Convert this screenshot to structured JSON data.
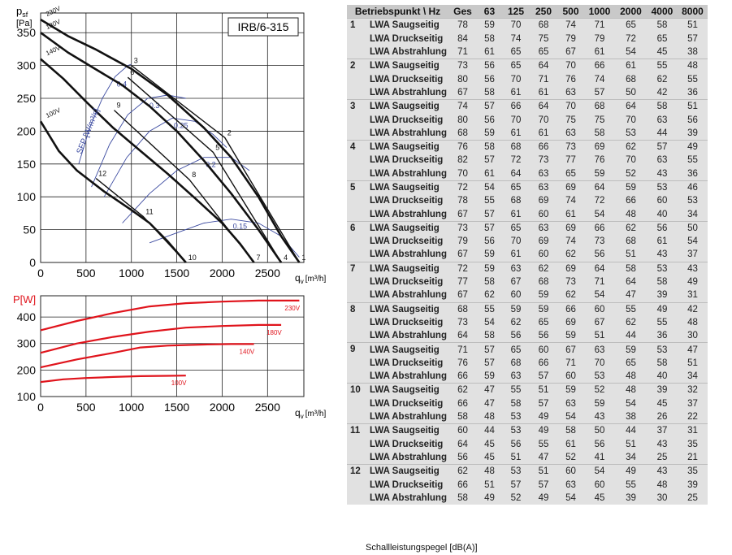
{
  "chart_data": [
    {
      "type": "line",
      "model_label": "IRB/6-315",
      "ylabel_main": "p",
      "ylabel_sub": "sf",
      "ylabel_unit": "[Pa]",
      "xlabel_main": "q",
      "xlabel_sub": "v",
      "xlabel_unit": "[m³/h]",
      "xlim": [
        0,
        2900
      ],
      "ylim": [
        0,
        380
      ],
      "xticks": [
        "0",
        "500",
        "1000",
        "1500",
        "2000",
        "2500"
      ],
      "yticks": [
        "0",
        "50",
        "100",
        "150",
        "200",
        "250",
        "300",
        "350"
      ],
      "grid": true,
      "series": [
        {
          "name": "230V",
          "x": [
            0,
            300,
            600,
            1000,
            1400,
            1800,
            2100,
            2400,
            2650,
            2850
          ],
          "y": [
            370,
            345,
            325,
            295,
            255,
            205,
            160,
            100,
            40,
            0
          ]
        },
        {
          "name": "180V",
          "x": [
            0,
            300,
            600,
            900,
            1200,
            1500,
            1800,
            2100,
            2400,
            2650
          ],
          "y": [
            350,
            320,
            295,
            270,
            238,
            200,
            155,
            105,
            50,
            0
          ]
        },
        {
          "name": "140V",
          "x": [
            0,
            250,
            500,
            800,
            1100,
            1400,
            1700,
            2000,
            2200,
            2350
          ],
          "y": [
            310,
            280,
            245,
            205,
            170,
            135,
            98,
            60,
            28,
            0
          ]
        },
        {
          "name": "100V",
          "x": [
            0,
            200,
            400,
            700,
            1000,
            1200,
            1400,
            1600
          ],
          "y": [
            215,
            170,
            140,
            108,
            80,
            60,
            32,
            0
          ]
        }
      ],
      "operating_points": [
        {
          "label": "1",
          "x": 2850,
          "y": 0
        },
        {
          "label": "2",
          "x": 2030,
          "y": 190
        },
        {
          "label": "3",
          "x": 1000,
          "y": 300
        },
        {
          "label": "4",
          "x": 2650,
          "y": 0
        },
        {
          "label": "5",
          "x": 1900,
          "y": 168
        },
        {
          "label": "6",
          "x": 960,
          "y": 282
        },
        {
          "label": "7",
          "x": 2350,
          "y": 0
        },
        {
          "label": "8",
          "x": 1640,
          "y": 126
        },
        {
          "label": "9",
          "x": 810,
          "y": 232
        },
        {
          "label": "10",
          "x": 1600,
          "y": 0
        },
        {
          "label": "11",
          "x": 1130,
          "y": 70
        },
        {
          "label": "12",
          "x": 610,
          "y": 128
        }
      ],
      "sfp_label": "SFP [W/m³/s]",
      "sfp_curves": [
        {
          "name": "0.4",
          "x": [
            420,
            540,
            680,
            820,
            960,
            1000
          ],
          "y": [
            150,
            205,
            250,
            283,
            300,
            302
          ]
        },
        {
          "name": "0.3",
          "x": [
            560,
            760,
            960,
            1180,
            1400,
            1600
          ],
          "y": [
            115,
            180,
            225,
            250,
            255,
            250
          ]
        },
        {
          "name": "0.25",
          "x": [
            700,
            950,
            1200,
            1450,
            1700,
            1900,
            2050
          ],
          "y": [
            100,
            160,
            200,
            220,
            215,
            195,
            175
          ]
        },
        {
          "name": "0.2",
          "x": [
            900,
            1200,
            1500,
            1800,
            2100,
            2300
          ],
          "y": [
            60,
            105,
            140,
            160,
            160,
            140
          ]
        },
        {
          "name": "0.15",
          "x": [
            1200,
            1500,
            1800,
            2100,
            2400,
            2650,
            2850
          ],
          "y": [
            30,
            45,
            60,
            66,
            60,
            40,
            8
          ]
        }
      ]
    },
    {
      "type": "line",
      "ylabel": "P[W]",
      "xlabel_main": "q",
      "xlabel_sub": "v",
      "xlabel_unit": "[m³/h]",
      "xlim": [
        0,
        2900
      ],
      "ylim": [
        100,
        480
      ],
      "xticks": [
        "0",
        "500",
        "1000",
        "1500",
        "2000",
        "2500"
      ],
      "yticks": [
        "100",
        "200",
        "300",
        "400"
      ],
      "grid": true,
      "series": [
        {
          "name": "230V",
          "x": [
            0,
            400,
            800,
            1200,
            1600,
            2000,
            2400,
            2850
          ],
          "y": [
            350,
            385,
            415,
            440,
            452,
            458,
            462,
            462
          ]
        },
        {
          "name": "180V",
          "x": [
            0,
            400,
            800,
            1200,
            1600,
            2000,
            2400,
            2650
          ],
          "y": [
            265,
            300,
            325,
            345,
            360,
            366,
            370,
            370
          ]
        },
        {
          "name": "140V",
          "x": [
            0,
            400,
            800,
            1100,
            1400,
            1800,
            2100,
            2350
          ],
          "y": [
            210,
            240,
            265,
            285,
            292,
            296,
            298,
            298
          ]
        },
        {
          "name": "100V",
          "x": [
            0,
            250,
            500,
            800,
            1100,
            1400,
            1600
          ],
          "y": [
            155,
            165,
            170,
            174,
            177,
            178,
            179
          ]
        }
      ]
    }
  ],
  "table": {
    "header": [
      "Betriebspunkt \\ Hz",
      "Ges",
      "63",
      "125",
      "250",
      "500",
      "1000",
      "2000",
      "4000",
      "8000"
    ],
    "groups": [
      {
        "point": "1",
        "rows": [
          {
            "label": "LWA Saugseitig",
            "values": [
              "78",
              "59",
              "70",
              "68",
              "74",
              "71",
              "65",
              "58",
              "51"
            ]
          },
          {
            "label": "LWA Druckseitig",
            "values": [
              "84",
              "58",
              "74",
              "75",
              "79",
              "79",
              "72",
              "65",
              "57"
            ]
          },
          {
            "label": "LWA Abstrahlung",
            "values": [
              "71",
              "61",
              "65",
              "65",
              "67",
              "61",
              "54",
              "45",
              "38"
            ]
          }
        ]
      },
      {
        "point": "2",
        "rows": [
          {
            "label": "LWA Saugseitig",
            "values": [
              "73",
              "56",
              "65",
              "64",
              "70",
              "66",
              "61",
              "55",
              "48"
            ]
          },
          {
            "label": "LWA Druckseitig",
            "values": [
              "80",
              "56",
              "70",
              "71",
              "76",
              "74",
              "68",
              "62",
              "55"
            ]
          },
          {
            "label": "LWA Abstrahlung",
            "values": [
              "67",
              "58",
              "61",
              "61",
              "63",
              "57",
              "50",
              "42",
              "36"
            ]
          }
        ]
      },
      {
        "point": "3",
        "rows": [
          {
            "label": "LWA Saugseitig",
            "values": [
              "74",
              "57",
              "66",
              "64",
              "70",
              "68",
              "64",
              "58",
              "51"
            ]
          },
          {
            "label": "LWA Druckseitig",
            "values": [
              "80",
              "56",
              "70",
              "70",
              "75",
              "75",
              "70",
              "63",
              "56"
            ]
          },
          {
            "label": "LWA Abstrahlung",
            "values": [
              "68",
              "59",
              "61",
              "61",
              "63",
              "58",
              "53",
              "44",
              "39"
            ]
          }
        ]
      },
      {
        "point": "4",
        "rows": [
          {
            "label": "LWA Saugseitig",
            "values": [
              "76",
              "58",
              "68",
              "66",
              "73",
              "69",
              "62",
              "57",
              "49"
            ]
          },
          {
            "label": "LWA Druckseitig",
            "values": [
              "82",
              "57",
              "72",
              "73",
              "77",
              "76",
              "70",
              "63",
              "55"
            ]
          },
          {
            "label": "LWA Abstrahlung",
            "values": [
              "70",
              "61",
              "64",
              "63",
              "65",
              "59",
              "52",
              "43",
              "36"
            ]
          }
        ]
      },
      {
        "point": "5",
        "rows": [
          {
            "label": "LWA Saugseitig",
            "values": [
              "72",
              "54",
              "65",
              "63",
              "69",
              "64",
              "59",
              "53",
              "46"
            ]
          },
          {
            "label": "LWA Druckseitig",
            "values": [
              "78",
              "55",
              "68",
              "69",
              "74",
              "72",
              "66",
              "60",
              "53"
            ]
          },
          {
            "label": "LWA Abstrahlung",
            "values": [
              "67",
              "57",
              "61",
              "60",
              "61",
              "54",
              "48",
              "40",
              "34"
            ]
          }
        ]
      },
      {
        "point": "6",
        "rows": [
          {
            "label": "LWA Saugseitig",
            "values": [
              "73",
              "57",
              "65",
              "63",
              "69",
              "66",
              "62",
              "56",
              "50"
            ]
          },
          {
            "label": "LWA Druckseitig",
            "values": [
              "79",
              "56",
              "70",
              "69",
              "74",
              "73",
              "68",
              "61",
              "54"
            ]
          },
          {
            "label": "LWA Abstrahlung",
            "values": [
              "67",
              "59",
              "61",
              "60",
              "62",
              "56",
              "51",
              "43",
              "37"
            ]
          }
        ]
      },
      {
        "point": "7",
        "rows": [
          {
            "label": "LWA Saugseitig",
            "values": [
              "72",
              "59",
              "63",
              "62",
              "69",
              "64",
              "58",
              "53",
              "43"
            ]
          },
          {
            "label": "LWA Druckseitig",
            "values": [
              "77",
              "58",
              "67",
              "68",
              "73",
              "71",
              "64",
              "58",
              "49"
            ]
          },
          {
            "label": "LWA Abstrahlung",
            "values": [
              "67",
              "62",
              "60",
              "59",
              "62",
              "54",
              "47",
              "39",
              "31"
            ]
          }
        ]
      },
      {
        "point": "8",
        "rows": [
          {
            "label": "LWA Saugseitig",
            "values": [
              "68",
              "55",
              "59",
              "59",
              "66",
              "60",
              "55",
              "49",
              "42"
            ]
          },
          {
            "label": "LWA Druckseitig",
            "values": [
              "73",
              "54",
              "62",
              "65",
              "69",
              "67",
              "62",
              "55",
              "48"
            ]
          },
          {
            "label": "LWA Abstrahlung",
            "values": [
              "64",
              "58",
              "56",
              "56",
              "59",
              "51",
              "44",
              "36",
              "30"
            ]
          }
        ]
      },
      {
        "point": "9",
        "rows": [
          {
            "label": "LWA Saugseitig",
            "values": [
              "71",
              "57",
              "65",
              "60",
              "67",
              "63",
              "59",
              "53",
              "47"
            ]
          },
          {
            "label": "LWA Druckseitig",
            "values": [
              "76",
              "57",
              "68",
              "66",
              "71",
              "70",
              "65",
              "58",
              "51"
            ]
          },
          {
            "label": "LWA Abstrahlung",
            "values": [
              "66",
              "59",
              "63",
              "57",
              "60",
              "53",
              "48",
              "40",
              "34"
            ]
          }
        ]
      },
      {
        "point": "10",
        "rows": [
          {
            "label": "LWA Saugseitig",
            "values": [
              "62",
              "47",
              "55",
              "51",
              "59",
              "52",
              "48",
              "39",
              "32"
            ]
          },
          {
            "label": "LWA Druckseitig",
            "values": [
              "66",
              "47",
              "58",
              "57",
              "63",
              "59",
              "54",
              "45",
              "37"
            ]
          },
          {
            "label": "LWA Abstrahlung",
            "values": [
              "58",
              "48",
              "53",
              "49",
              "54",
              "43",
              "38",
              "26",
              "22"
            ]
          }
        ]
      },
      {
        "point": "11",
        "rows": [
          {
            "label": "LWA Saugseitig",
            "values": [
              "60",
              "44",
              "53",
              "49",
              "58",
              "50",
              "44",
              "37",
              "31"
            ]
          },
          {
            "label": "LWA Druckseitig",
            "values": [
              "64",
              "45",
              "56",
              "55",
              "61",
              "56",
              "51",
              "43",
              "35"
            ]
          },
          {
            "label": "LWA Abstrahlung",
            "values": [
              "56",
              "45",
              "51",
              "47",
              "52",
              "41",
              "34",
              "25",
              "21"
            ]
          }
        ]
      },
      {
        "point": "12",
        "rows": [
          {
            "label": "LWA Saugseitig",
            "values": [
              "62",
              "48",
              "53",
              "51",
              "60",
              "54",
              "49",
              "43",
              "35"
            ]
          },
          {
            "label": "LWA Druckseitig",
            "values": [
              "66",
              "51",
              "57",
              "57",
              "63",
              "60",
              "55",
              "48",
              "39"
            ]
          },
          {
            "label": "LWA Abstrahlung",
            "values": [
              "58",
              "49",
              "52",
              "49",
              "54",
              "45",
              "39",
              "30",
              "25"
            ]
          }
        ]
      }
    ]
  },
  "caption": "Schallleistungspegel [dB(A)]",
  "colors": {
    "curve": "#111111",
    "sfp": "#3b4aa0",
    "power_curve": "#e0141c",
    "power_axis": "#e0141c",
    "table_header": "#c9c9c9",
    "table_cell": "#e1e1e1"
  }
}
